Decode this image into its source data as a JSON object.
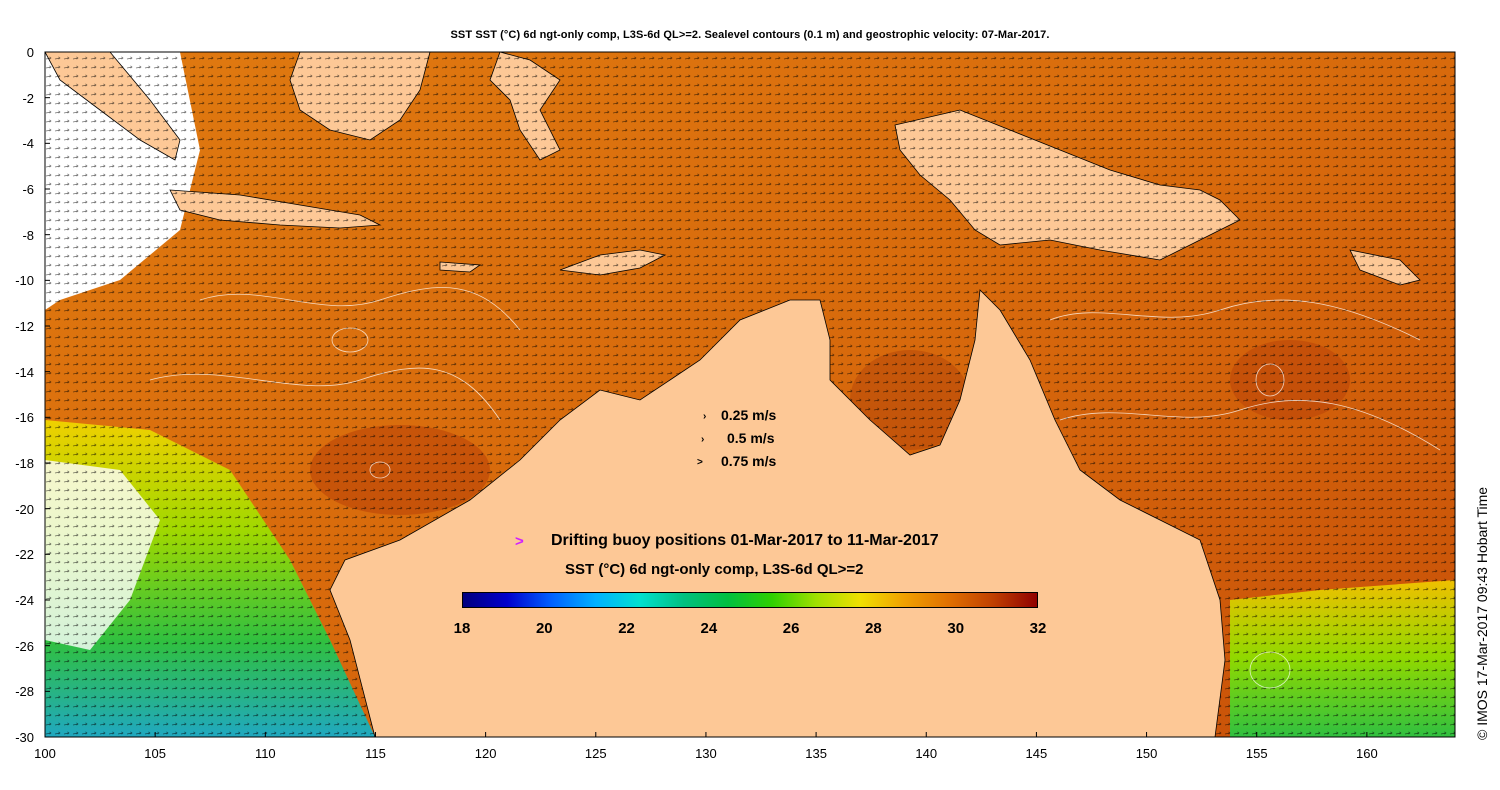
{
  "title": "SST SST (°C) 6d ngt-only comp, L3S-6d QL>=2. Sealevel contours (0.1 m) and geostrophic velocity: 07-Mar-2017.",
  "map": {
    "lon_range": [
      100,
      164
    ],
    "lat_range": [
      -30,
      0
    ],
    "x_ticks": [
      "100",
      "105",
      "110",
      "115",
      "120",
      "125",
      "130",
      "135",
      "140",
      "145",
      "150",
      "155",
      "160"
    ],
    "y_ticks": [
      "0",
      "-2",
      "-4",
      "-6",
      "-8",
      "-10",
      "-12",
      "-14",
      "-16",
      "-18",
      "-20",
      "-22",
      "-24",
      "-26",
      "-28",
      "-30"
    ],
    "land_color": "#fdc896"
  },
  "velocity_legend": [
    {
      "label": "0.25 m/s"
    },
    {
      "label": "0.5 m/s"
    },
    {
      "label": "0.75 m/s"
    }
  ],
  "buoy_legend": {
    "marker": ">",
    "marker_color": "#d020ff",
    "label": "Drifting buoy positions 01-Mar-2017 to 11-Mar-2017"
  },
  "colorbar": {
    "title": "SST (°C) 6d ngt-only comp, L3S-6d QL>=2",
    "min": 18,
    "max": 32,
    "ticks": [
      "18",
      "20",
      "22",
      "24",
      "26",
      "28",
      "30",
      "32"
    ],
    "colors": [
      "#00007f",
      "#0000cc",
      "#0060ff",
      "#00b0ff",
      "#00e0d0",
      "#00c080",
      "#00c040",
      "#30d000",
      "#a0e000",
      "#f0e000",
      "#f0a000",
      "#e07000",
      "#c04000",
      "#900000"
    ]
  },
  "credit": "© IMOS 17-Mar-2017 09:43 Hobart Time"
}
